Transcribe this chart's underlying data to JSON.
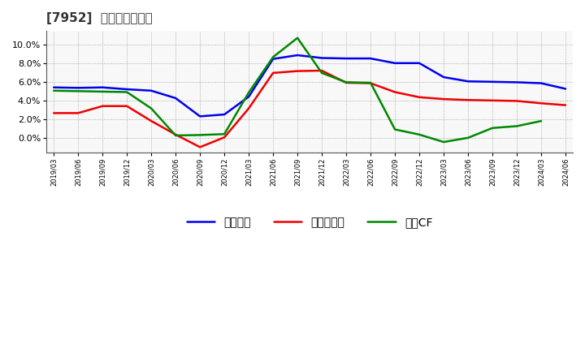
{
  "title": "[7952]  マージンの推移",
  "x_labels": [
    "2019/03",
    "2019/06",
    "2019/09",
    "2019/12",
    "2020/03",
    "2020/06",
    "2020/09",
    "2020/12",
    "2021/03",
    "2021/06",
    "2021/09",
    "2021/12",
    "2022/03",
    "2022/06",
    "2022/09",
    "2022/12",
    "2023/03",
    "2023/06",
    "2023/09",
    "2023/12",
    "2024/03",
    "2024/06"
  ],
  "legend_labels": [
    "経常利益",
    "当期純利益",
    "営業CF"
  ],
  "series": {
    "経常利益": {
      "color": "#0000ee",
      "values": [
        5.45,
        5.4,
        5.45,
        5.25,
        5.1,
        4.3,
        2.35,
        2.55,
        4.45,
        8.5,
        8.9,
        8.6,
        8.55,
        8.55,
        8.05,
        8.05,
        6.55,
        6.1,
        6.05,
        6.0,
        5.9,
        5.3
      ]
    },
    "当期純利益": {
      "color": "#ee0000",
      "values": [
        2.7,
        2.7,
        3.45,
        3.45,
        1.85,
        0.4,
        -0.95,
        0.1,
        3.2,
        7.0,
        7.2,
        7.25,
        5.95,
        5.9,
        4.95,
        4.4,
        4.2,
        4.1,
        4.05,
        4.0,
        3.75,
        3.55
      ]
    },
    "営業CF": {
      "color": "#008800",
      "values": [
        5.1,
        5.05,
        5.0,
        4.95,
        3.2,
        0.3,
        0.35,
        0.45,
        4.9,
        8.7,
        10.75,
        7.0,
        6.0,
        5.95,
        0.95,
        0.4,
        -0.4,
        0.05,
        1.1,
        1.3,
        1.85,
        null
      ]
    }
  },
  "ylim": [
    -1.5,
    11.5
  ],
  "yticks": [
    0.0,
    2.0,
    4.0,
    6.0,
    8.0,
    10.0
  ],
  "background_color": "#ffffff",
  "grid_color": "#999999",
  "title_fontsize": 11,
  "plot_area_bg": "#f8f8f8"
}
